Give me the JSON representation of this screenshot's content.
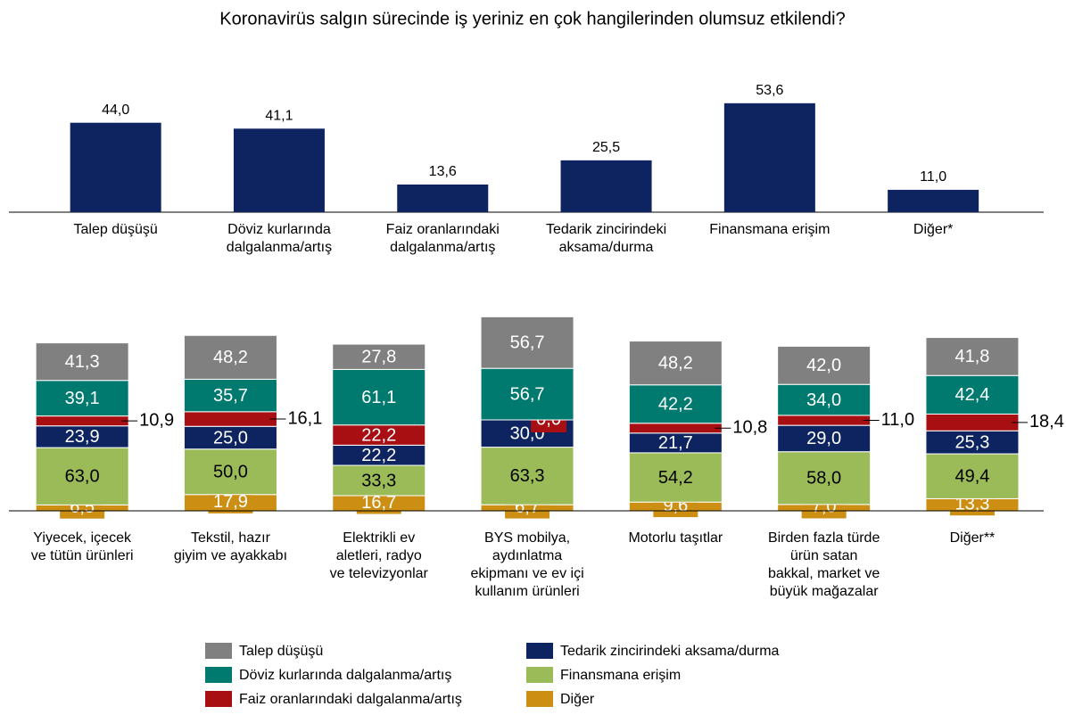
{
  "chart_data": [
    {
      "type": "bar",
      "title": "Koronavirüs salgın sürecinde iş yeriniz en çok hangilerinden olumsuz etkilendi?",
      "categories": [
        "Talep düşüşü",
        "Döviz kurlarında\ndalgalanma/artış",
        "Faiz oranlarındaki\ndalgalanma/artış",
        "Tedarik zincirindeki\naksama/durma",
        "Finansmana erişim",
        "Diğer*"
      ],
      "values": [
        44.0,
        41.1,
        13.6,
        25.5,
        53.6,
        11.0
      ],
      "value_labels": [
        "44,0",
        "41,1",
        "13,6",
        "25,5",
        "53,6",
        "11,0"
      ],
      "color": "#0d2461"
    },
    {
      "type": "stacked_bar",
      "categories": [
        "Yiyecek, içecek\nve tütün ürünleri",
        "Tekstil, hazır\ngiyim ve ayakkabı",
        "Elektrikli ev\naletleri, radyo\nve televizyonlar",
        "BYS mobilya,\naydınlatma\nekipmanı ve ev içi\nkullanım ürünleri",
        "Motorlu taşıtlar",
        "Birden fazla türde\nürün satan\nbakkal, market ve\nbüyük mağazalar",
        "Diğer**"
      ],
      "series": [
        {
          "name": "Talep düşüşü",
          "color": "#808080",
          "values": [
            41.3,
            48.2,
            27.8,
            56.7,
            48.2,
            42.0,
            41.8
          ],
          "value_labels": [
            "41,3",
            "48,2",
            "27,8",
            "56,7",
            "48,2",
            "42,0",
            "41,8"
          ]
        },
        {
          "name": "Döviz kurlarında dalgalanma/artış",
          "color": "#00796f",
          "values": [
            39.1,
            35.7,
            61.1,
            56.7,
            42.2,
            34.0,
            42.4
          ],
          "value_labels": [
            "39,1",
            "35,7",
            "61,1",
            "56,7",
            "42,2",
            "34,0",
            "42,4"
          ]
        },
        {
          "name": "Faiz oranlarındaki dalgalanma/artış",
          "color": "#a80f12",
          "values": [
            10.9,
            16.1,
            22.2,
            0.0,
            10.8,
            11.0,
            18.4
          ],
          "value_labels": [
            "10,9",
            "16,1",
            "22,2",
            "0,0",
            "10,8",
            "11,0",
            "18,4"
          ]
        },
        {
          "name": "Tedarik zincirindeki aksama/durma",
          "color": "#0d2461",
          "values": [
            23.9,
            25.0,
            22.2,
            30.0,
            21.7,
            29.0,
            25.3
          ],
          "value_labels": [
            "23,9",
            "25,0",
            "22,2",
            "30,0",
            "21,7",
            "29,0",
            "25,3"
          ]
        },
        {
          "name": "Finansmana erişim",
          "color": "#9bbb59",
          "values": [
            63.0,
            50.0,
            33.3,
            63.3,
            54.2,
            58.0,
            49.4
          ],
          "value_labels": [
            "63,0",
            "50,0",
            "33,3",
            "63,3",
            "54,2",
            "58,0",
            "49,4"
          ]
        },
        {
          "name": "Diğer",
          "color": "#cc8f14",
          "values": [
            6.5,
            17.9,
            16.7,
            6.7,
            9.6,
            7.0,
            13.3
          ],
          "value_labels": [
            "6,5",
            "17,9",
            "16,7",
            "6,7",
            "9,6",
            "7,0",
            "13,3"
          ]
        }
      ],
      "stack_order": [
        5,
        4,
        3,
        2,
        1,
        0
      ]
    }
  ]
}
